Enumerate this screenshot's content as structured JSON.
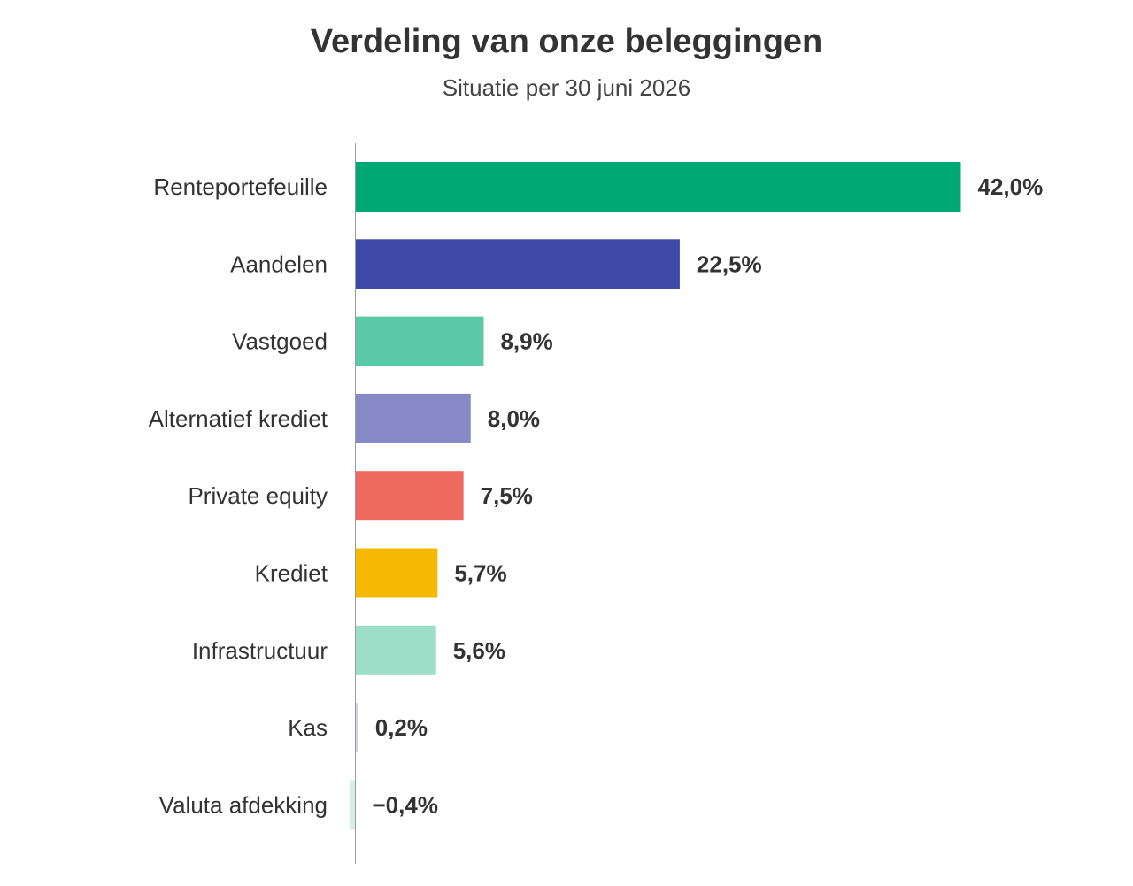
{
  "chart_data": {
    "type": "bar",
    "orientation": "horizontal",
    "title": "Verdeling van onze beleggingen",
    "subtitle": "Situatie per 30 juni 2026",
    "xlabel": "",
    "ylabel": "",
    "categories": [
      "Renteportefeuille",
      "Aandelen",
      "Vastgoed",
      "Alternatief krediet",
      "Private equity",
      "Krediet",
      "Infrastructuur",
      "Kas",
      "Valuta afdekking"
    ],
    "values": [
      42.0,
      22.5,
      8.9,
      8.0,
      7.5,
      5.7,
      5.6,
      0.2,
      -0.4
    ],
    "value_labels": [
      "42,0%",
      "22,5%",
      "8,9%",
      "8,0%",
      "7,5%",
      "5,7%",
      "5,6%",
      "0,2%",
      "−0,4%"
    ],
    "colors": [
      "#00a974",
      "#3f4aa8",
      "#5cc9a6",
      "#8889c7",
      "#ec6b5e",
      "#f6b800",
      "#9cdec7",
      "#ccd0e8",
      "#d4efe5"
    ],
    "unit": "%",
    "grid": false,
    "legend": "none"
  }
}
